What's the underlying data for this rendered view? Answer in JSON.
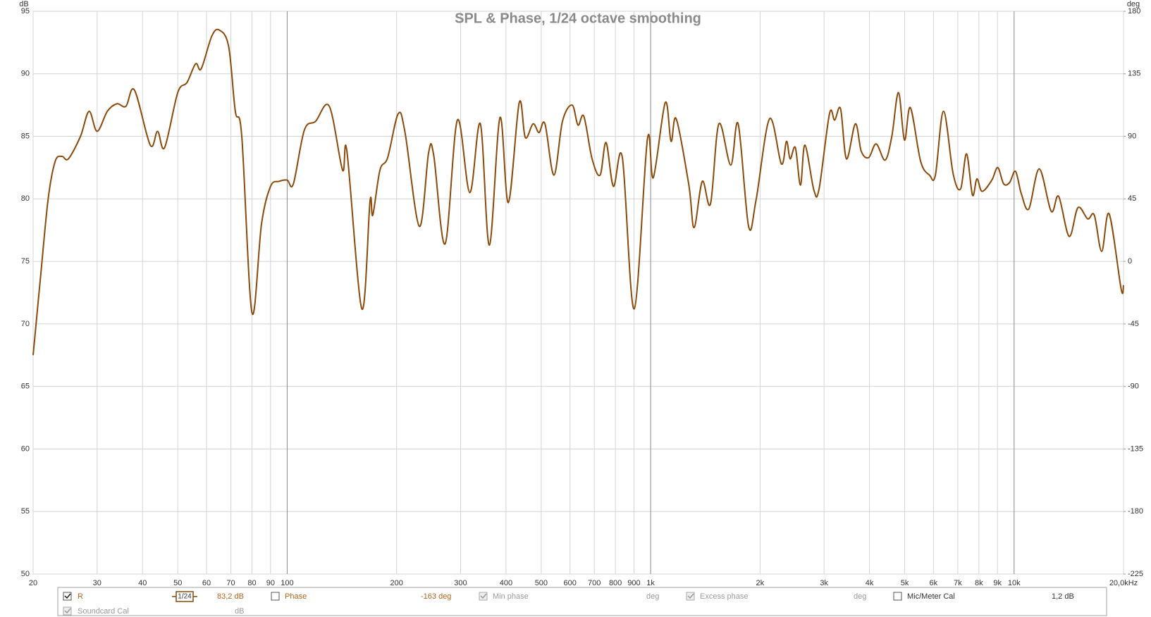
{
  "chart_data": {
    "type": "line",
    "title": "SPL & Phase, 1/24 octave smoothing",
    "y_label": "dB",
    "y2_label": "deg",
    "log_x": true,
    "grid": true,
    "xlim": [
      20,
      20000
    ],
    "xticks": [
      20,
      30,
      40,
      50,
      60,
      70,
      80,
      90,
      100,
      200,
      300,
      400,
      500,
      600,
      700,
      800,
      900,
      {
        "value": 1000,
        "label": "1k"
      },
      {
        "value": 2000,
        "label": "2k"
      },
      {
        "value": 3000,
        "label": "3k"
      },
      {
        "value": 4000,
        "label": "4k"
      },
      {
        "value": 5000,
        "label": "5k"
      },
      {
        "value": 6000,
        "label": "6k"
      },
      {
        "value": 7000,
        "label": "7k"
      },
      {
        "value": 8000,
        "label": "8k"
      },
      {
        "value": 9000,
        "label": "9k"
      },
      {
        "value": 10000,
        "label": "10k"
      },
      {
        "value": 20000,
        "label": "20,0kHz"
      }
    ],
    "ylim": [
      50,
      95
    ],
    "yticks": [
      50,
      55,
      60,
      65,
      70,
      75,
      80,
      85,
      90,
      95
    ],
    "y2lim": [
      -225,
      180
    ],
    "y2ticks": [
      -225,
      -180,
      -135,
      -90,
      -45,
      0,
      45,
      90,
      135,
      180
    ],
    "x": [
      20,
      21,
      22,
      23,
      24,
      25,
      27,
      28.5,
      30,
      32,
      34,
      36,
      38,
      42,
      44,
      46,
      50,
      53,
      56,
      58,
      62,
      65,
      69,
      72,
      75,
      80,
      85,
      90,
      95,
      100,
      104,
      111.5,
      119.7,
      130.6,
      142,
      146,
      160.5,
      169,
      172,
      180,
      189,
      202,
      211,
      231,
      245,
      253,
      272,
      294,
      318,
      340,
      360,
      385,
      406,
      435,
      452,
      475,
      493,
      512,
      542,
      572,
      608,
      631,
      655,
      690,
      726,
      754,
      790,
      836,
      901,
      980,
      1017,
      1097,
      1138,
      1176,
      1274,
      1317,
      1387,
      1461,
      1541,
      1661,
      1741,
      1860,
      1950,
      2124,
      2289,
      2365,
      2420,
      2501,
      2584,
      2658,
      2813,
      2907,
      3105,
      3209,
      3331,
      3458,
      3658,
      3798,
      3981,
      4173,
      4417,
      4609,
      4808,
      4993,
      5183,
      5532,
      5850,
      6074,
      6394,
      6797,
      7126,
      7399,
      7682,
      7902,
      8167,
      8684,
      9016,
      9360,
      9716,
      10090,
      10470,
      10980,
      11730,
      12650,
      13260,
      14170,
      14990,
      15940,
      16620,
      17420,
      18260,
      19700,
      20000
    ],
    "series": [
      {
        "name": "R",
        "color": "#8c4a0a",
        "values": [
          67.5,
          74,
          80,
          83,
          83.4,
          83.2,
          85,
          87,
          85.4,
          87,
          87.6,
          87.4,
          88.7,
          84.3,
          85.4,
          84.1,
          88.5,
          89.3,
          90.8,
          90.4,
          93,
          93.5,
          92.2,
          87,
          85,
          70.9,
          78,
          81,
          81.4,
          81.5,
          81.2,
          85.5,
          86.2,
          87.4,
          82.3,
          83.8,
          71.2,
          79.8,
          78.7,
          82.3,
          83.3,
          86.8,
          85.3,
          77.8,
          83.7,
          83.5,
          76.4,
          86.3,
          80.5,
          86,
          76.3,
          86.5,
          79.7,
          87.7,
          84.9,
          86,
          85.3,
          86,
          81.9,
          86.2,
          87.5,
          85.9,
          86.6,
          83.2,
          81.9,
          84.5,
          81,
          83.3,
          71.2,
          84.8,
          81.7,
          87.7,
          84.6,
          86.4,
          81.1,
          77.7,
          81.4,
          79.6,
          86,
          82.7,
          86,
          77.8,
          79.9,
          86.4,
          82.8,
          84.6,
          83.2,
          84.1,
          81.1,
          84.3,
          80.7,
          80.8,
          86.8,
          86.3,
          87.2,
          83.2,
          86,
          83.8,
          83.3,
          84.4,
          83.1,
          85,
          88.5,
          84.7,
          87.3,
          83,
          81.9,
          81.9,
          87,
          82,
          80.8,
          83.6,
          80.3,
          81.6,
          80.6,
          81.5,
          82.5,
          81.2,
          81.3,
          82.2,
          80.4,
          79.2,
          82.4,
          79,
          80.2,
          77,
          79.3,
          78.4,
          78.7,
          75.8,
          78.8,
          72.8,
          73.1
        ]
      }
    ]
  },
  "legend_panel": {
    "smoothing": "1/24",
    "spl_readout": "83,2 dB",
    "phase": "Phase",
    "phase_readout": "-163 deg",
    "min_phase": "Min phase",
    "min_phase_unit": "deg",
    "excess_phase": "Excess phase",
    "excess_phase_unit": "deg",
    "mic_cal": "Mic/Meter Cal",
    "mic_cal_readout": "1,2 dB",
    "soundcard_cal": "Soundcard Cal",
    "soundcard_cal_unit": "dB"
  }
}
